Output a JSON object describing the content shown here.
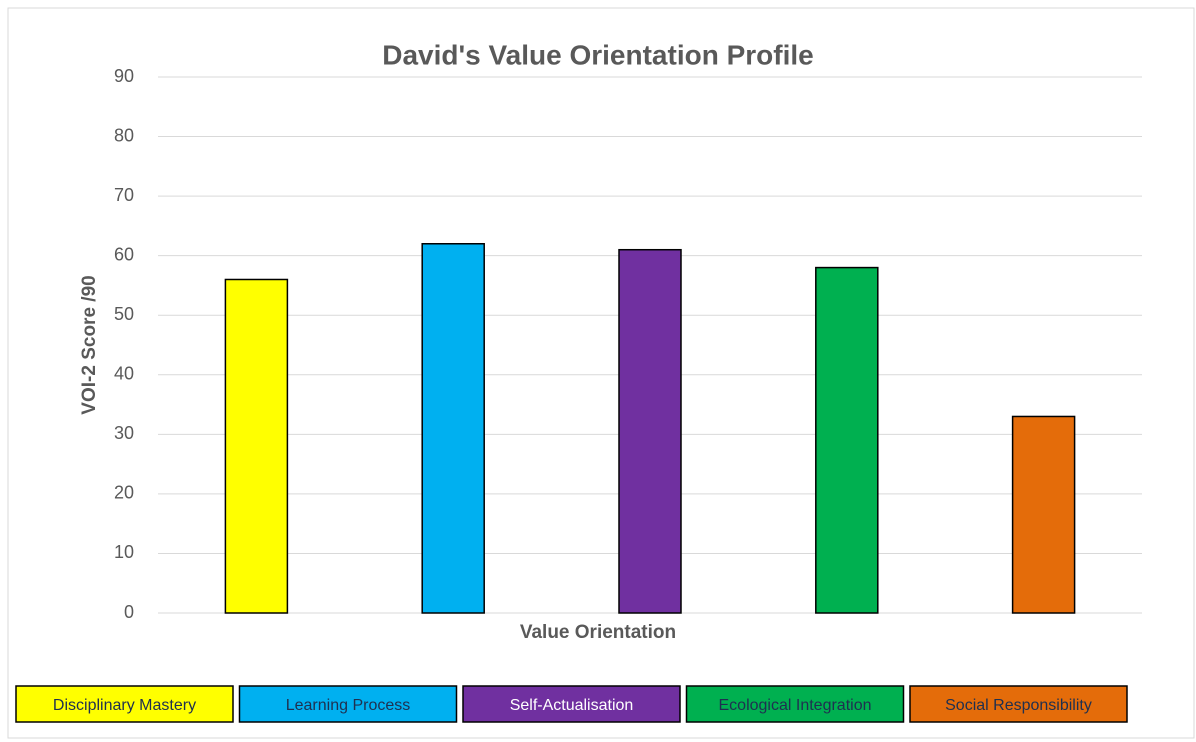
{
  "chart_data": {
    "type": "bar",
    "title": "David's Value Orientation Profile",
    "x_label": "Value Orientation",
    "y_label": "VOI-2 Score /90",
    "categories": [
      "Disciplinary Mastery",
      "Learning Process",
      "Self-Actualisation",
      "Ecological Integration",
      "Social Responsibility"
    ],
    "values": [
      56,
      62,
      61,
      58,
      33
    ],
    "colors": [
      "#ffff00",
      "#00b0f0",
      "#7030a0",
      "#00b050",
      "#e46c0a"
    ],
    "ylim": [
      0,
      90
    ],
    "yticks": [
      0,
      10,
      20,
      30,
      40,
      50,
      60,
      70,
      80,
      90
    ],
    "grid": true,
    "legend": "bottom"
  }
}
